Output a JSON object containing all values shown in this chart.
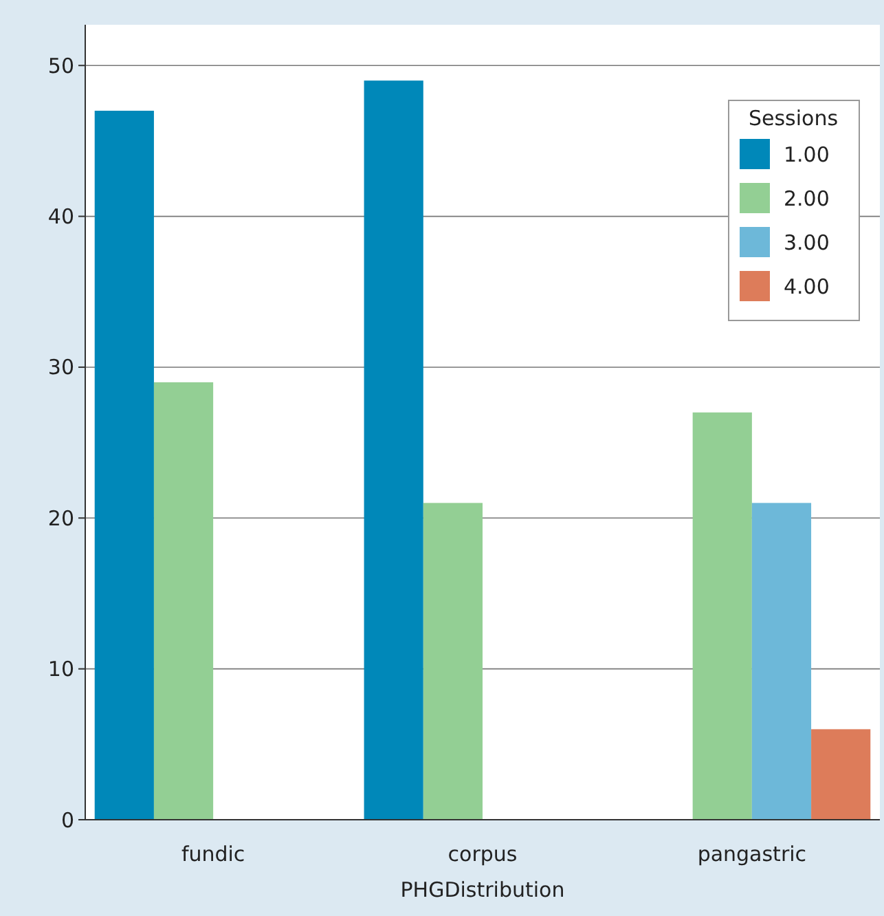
{
  "chart_data": {
    "type": "bar",
    "xlabel": "PHGDistribution",
    "legend_title": "Sessions",
    "categories": [
      "fundic",
      "corpus",
      "pangastric"
    ],
    "series": [
      {
        "name": "1.00",
        "color": "#0088b9",
        "values": [
          47,
          49,
          null
        ]
      },
      {
        "name": "2.00",
        "color": "#93cf94",
        "values": [
          29,
          21,
          27
        ]
      },
      {
        "name": "3.00",
        "color": "#6db8d9",
        "values": [
          null,
          null,
          21
        ]
      },
      {
        "name": "4.00",
        "color": "#dd7c5a",
        "values": [
          null,
          null,
          6
        ]
      }
    ],
    "ylim": [
      0,
      52.7
    ],
    "yticks": [
      0,
      10,
      20,
      30,
      40,
      50
    ],
    "grid": "y",
    "legend": "top right"
  }
}
